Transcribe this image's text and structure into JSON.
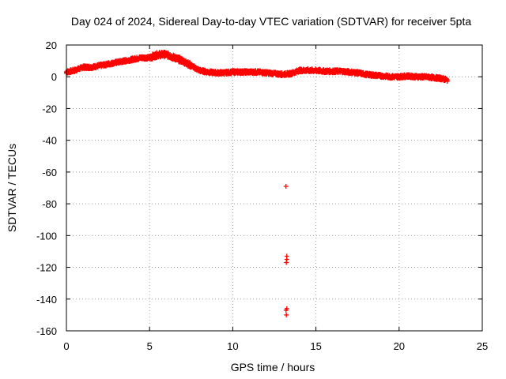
{
  "chart_data": {
    "type": "scatter",
    "title": "Day 024 of 2024, Sidereal Day-to-day VTEC variation (SDTVAR) for receiver 5pta",
    "xlabel": "GPS time / hours",
    "ylabel": "SDTVAR / TECUs",
    "xlim": [
      0,
      25
    ],
    "ylim": [
      -160,
      20
    ],
    "xticks": [
      0,
      5,
      10,
      15,
      20,
      25
    ],
    "yticks": [
      20,
      0,
      -20,
      -40,
      -60,
      -80,
      -100,
      -120,
      -140,
      -160
    ],
    "grid": true,
    "marker": "+",
    "color": "#ff0000",
    "series": [
      {
        "name": "SDTVAR",
        "trend": [
          [
            0.0,
            3
          ],
          [
            0.5,
            4
          ],
          [
            1.0,
            6
          ],
          [
            1.5,
            6
          ],
          [
            2.0,
            7
          ],
          [
            2.5,
            8
          ],
          [
            3.0,
            9
          ],
          [
            3.5,
            10
          ],
          [
            4.0,
            11
          ],
          [
            4.5,
            12
          ],
          [
            5.0,
            12
          ],
          [
            5.5,
            14
          ],
          [
            6.0,
            14
          ],
          [
            6.5,
            12
          ],
          [
            7.0,
            10
          ],
          [
            7.5,
            7
          ],
          [
            8.0,
            4
          ],
          [
            8.5,
            3
          ],
          [
            9.0,
            2.5
          ],
          [
            9.5,
            2.5
          ],
          [
            10.0,
            3
          ],
          [
            10.5,
            3
          ],
          [
            11.0,
            3
          ],
          [
            11.5,
            3
          ],
          [
            12.0,
            2.5
          ],
          [
            12.5,
            2
          ],
          [
            13.0,
            1.5
          ],
          [
            13.5,
            2
          ],
          [
            14.0,
            4
          ],
          [
            14.5,
            4
          ],
          [
            15.0,
            4
          ],
          [
            15.5,
            3.5
          ],
          [
            16.0,
            3.5
          ],
          [
            16.5,
            3.5
          ],
          [
            17.0,
            3
          ],
          [
            17.5,
            2.5
          ],
          [
            18.0,
            1.5
          ],
          [
            18.5,
            1
          ],
          [
            19.0,
            0.5
          ],
          [
            19.5,
            0
          ],
          [
            20.0,
            0
          ],
          [
            20.5,
            0.5
          ],
          [
            21.0,
            0
          ],
          [
            21.5,
            0
          ],
          [
            22.0,
            -0.5
          ],
          [
            22.5,
            -1
          ],
          [
            22.9,
            -2
          ]
        ],
        "outliers": [
          [
            13.2,
            -69
          ],
          [
            13.25,
            -113
          ],
          [
            13.25,
            -115
          ],
          [
            13.22,
            -117
          ],
          [
            13.25,
            -146
          ],
          [
            13.2,
            -147
          ],
          [
            13.22,
            -150
          ]
        ]
      }
    ]
  }
}
